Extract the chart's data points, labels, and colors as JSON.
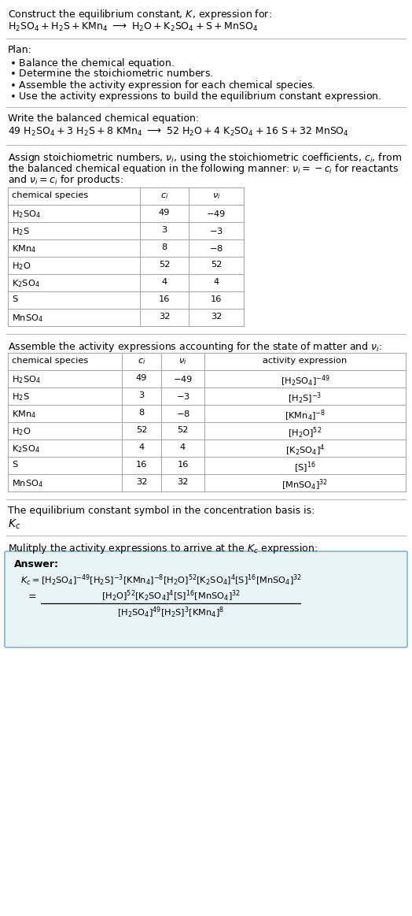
{
  "bg_color": "#ffffff",
  "text_color": "#000000",
  "answer_box_color": "#e8f4f8",
  "answer_box_border": "#7ab8d4",
  "separator_color": "#bbbbbb",
  "font_size": 9.0,
  "small_font": 8.2,
  "table1_rows": [
    [
      "$\\mathrm{H_2SO_4}$",
      "49",
      "$-49$"
    ],
    [
      "$\\mathrm{H_2S}$",
      "3",
      "$-3$"
    ],
    [
      "$\\mathrm{KMn_4}$",
      "8",
      "$-8$"
    ],
    [
      "$\\mathrm{H_2O}$",
      "52",
      "52"
    ],
    [
      "$\\mathrm{K_2SO_4}$",
      "4",
      "4"
    ],
    [
      "S",
      "16",
      "16"
    ],
    [
      "$\\mathrm{MnSO_4}$",
      "32",
      "32"
    ]
  ],
  "table2_rows": [
    [
      "$\\mathrm{H_2SO_4}$",
      "49",
      "$-49$",
      "$[\\mathrm{H_2SO_4}]^{-49}$"
    ],
    [
      "$\\mathrm{H_2S}$",
      "3",
      "$-3$",
      "$[\\mathrm{H_2S}]^{-3}$"
    ],
    [
      "$\\mathrm{KMn_4}$",
      "8",
      "$-8$",
      "$[\\mathrm{KMn_4}]^{-8}$"
    ],
    [
      "$\\mathrm{H_2O}$",
      "52",
      "52",
      "$[\\mathrm{H_2O}]^{52}$"
    ],
    [
      "$\\mathrm{K_2SO_4}$",
      "4",
      "4",
      "$[\\mathrm{K_2SO_4}]^{4}$"
    ],
    [
      "S",
      "16",
      "16",
      "$[\\mathrm{S}]^{16}$"
    ],
    [
      "$\\mathrm{MnSO_4}$",
      "32",
      "32",
      "$[\\mathrm{MnSO_4}]^{32}$"
    ]
  ]
}
